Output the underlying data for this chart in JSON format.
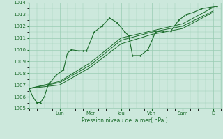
{
  "xlabel": "Pression niveau de la mer( hPa )",
  "ylim": [
    1005,
    1014
  ],
  "yticks": [
    1005,
    1006,
    1007,
    1008,
    1009,
    1010,
    1011,
    1012,
    1013,
    1014
  ],
  "day_labels": [
    "Lun",
    "Mer",
    "Jeu",
    "Ven",
    "Sam",
    "D"
  ],
  "day_positions": [
    8,
    16,
    24,
    32,
    40,
    48
  ],
  "xlim": [
    0,
    50
  ],
  "bg_color": "#cce8dc",
  "grid_color": "#99ccb3",
  "line_color": "#1a6b2a",
  "series0_x": [
    0,
    1,
    2,
    3,
    4,
    5,
    7,
    9,
    10,
    11,
    13,
    14,
    15,
    17,
    19,
    21,
    23,
    25,
    26,
    27,
    29,
    31,
    33,
    35,
    37,
    39,
    41,
    43,
    45,
    47,
    49
  ],
  "series0_y": [
    1006.7,
    1006.0,
    1005.5,
    1005.5,
    1006.0,
    1007.0,
    1007.8,
    1008.3,
    1009.7,
    1010.0,
    1009.9,
    1009.9,
    1009.9,
    1011.5,
    1012.0,
    1012.7,
    1012.3,
    1011.5,
    1011.2,
    1009.5,
    1009.5,
    1010.0,
    1011.5,
    1011.6,
    1011.6,
    1012.5,
    1013.0,
    1013.2,
    1013.5,
    1013.6,
    1013.7
  ],
  "series1_x": [
    0,
    8,
    16,
    24,
    32,
    40,
    48
  ],
  "series1_y": [
    1006.7,
    1007.0,
    1008.5,
    1010.5,
    1011.3,
    1011.8,
    1013.2
  ],
  "series2_x": [
    0,
    8,
    16,
    24,
    32,
    40,
    48
  ],
  "series2_y": [
    1006.7,
    1007.2,
    1008.7,
    1010.8,
    1011.5,
    1012.0,
    1013.3
  ],
  "series3_x": [
    0,
    8,
    16,
    24,
    32,
    40,
    48
  ],
  "series3_y": [
    1006.7,
    1007.3,
    1008.9,
    1011.0,
    1011.6,
    1012.2,
    1013.6
  ]
}
